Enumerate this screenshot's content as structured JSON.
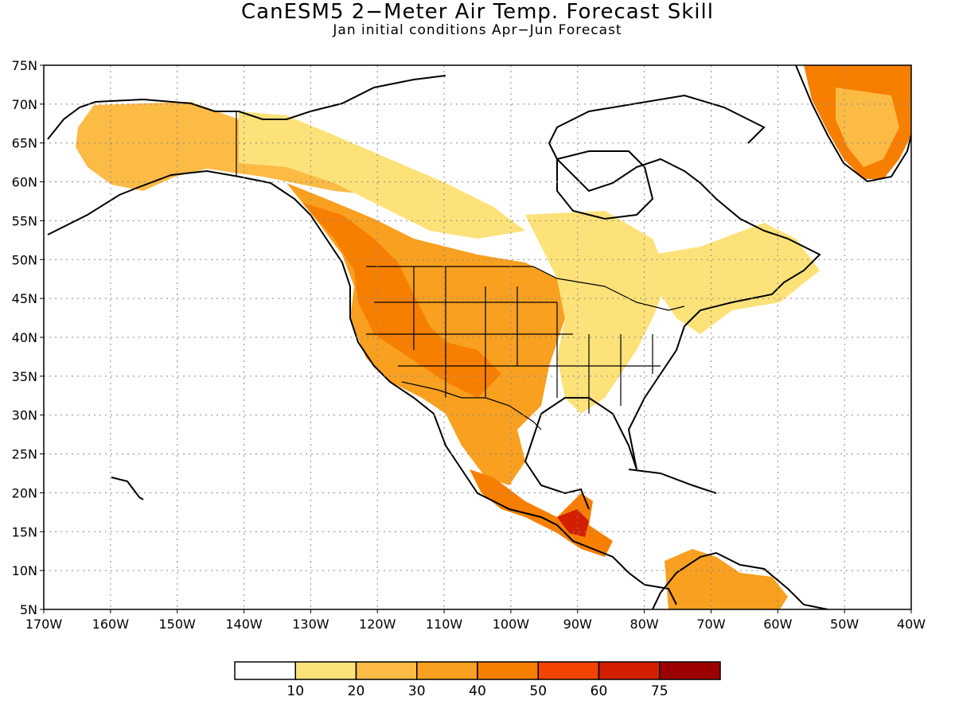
{
  "title": "CanESM5 2−Meter Air Temp. Forecast Skill",
  "subtitle": "Jan initial conditions  Apr−Jun Forecast",
  "map": {
    "lon_range": [
      -170,
      -40
    ],
    "lat_range": [
      5,
      75
    ],
    "lat_ticks": [
      "75N",
      "70N",
      "65N",
      "60N",
      "55N",
      "50N",
      "45N",
      "40N",
      "35N",
      "30N",
      "25N",
      "20N",
      "15N",
      "10N",
      "5N"
    ],
    "lon_ticks": [
      "170W",
      "160W",
      "150W",
      "140W",
      "130W",
      "120W",
      "110W",
      "100W",
      "90W",
      "80W",
      "70W",
      "60W",
      "50W",
      "40W"
    ],
    "gridlines": "dotted"
  },
  "colorbar": {
    "labels": [
      "10",
      "20",
      "30",
      "40",
      "50",
      "60",
      "75"
    ],
    "colors": [
      "#ffffff",
      "#fde27a",
      "#fbbb45",
      "#f9a020",
      "#f77f00",
      "#f24400",
      "#d41e00",
      "#9d0000"
    ]
  }
}
